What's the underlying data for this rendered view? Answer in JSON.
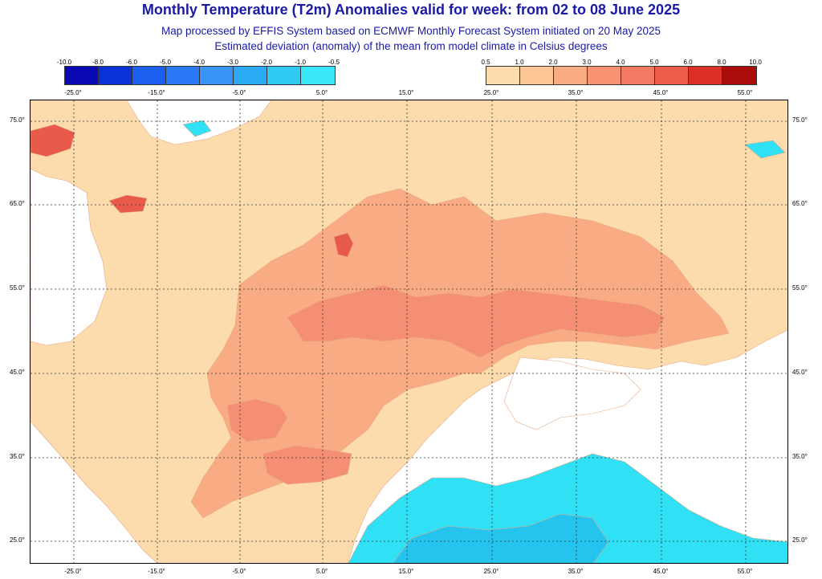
{
  "title": "Monthly Temperature (T2m) Anomalies valid for week: from 02 to 08 June 2025",
  "subtitle1": "Map processed by EFFIS System based on ECMWF Monthly Forecast System initiated on 20 May 2025",
  "subtitle2": "Estimated deviation (anomaly) of the mean from model climate in Celsius degrees",
  "cold_scale": {
    "labels": [
      "-10.0",
      "-8.0",
      "-6.0",
      "-5.0",
      "-4.0",
      "-3.0",
      "-2.0",
      "-1.0",
      "-0.5"
    ],
    "colors": [
      "#0a0ab4",
      "#0b32d6",
      "#1a5ff0",
      "#2a7af8",
      "#3a94f8",
      "#2aaaf4",
      "#30c8f4",
      "#3ae8fa"
    ]
  },
  "warm_scale": {
    "labels": [
      "0.5",
      "1.0",
      "2.0",
      "3.0",
      "4.0",
      "5.0",
      "6.0",
      "8.0",
      "10.0"
    ],
    "colors": [
      "#fcdcac",
      "#fbc596",
      "#f9ac83",
      "#f79373",
      "#f37a62",
      "#ee5e4c",
      "#dc2f28",
      "#aa0b0b"
    ]
  },
  "lon_labels": [
    "-25.0°",
    "-15.0°",
    "-5.0°",
    "5.0°",
    "15.0°",
    "25.0°",
    "35.0°",
    "45.0°",
    "55.0°"
  ],
  "lat_labels": [
    "75.0°",
    "65.0°",
    "55.0°",
    "45.0°",
    "35.0°",
    "25.0°"
  ],
  "map": {
    "land_color": "#fcdcac",
    "ocean_color": "#ffffff",
    "warm1_color": "#f9ac83",
    "warm2_color": "#f58f74",
    "warm3_color": "#e85b4b",
    "cold_color": "#30e0f4",
    "cold2_color": "#24c4ee"
  }
}
